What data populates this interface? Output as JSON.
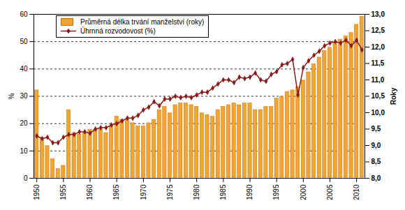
{
  "chart_data": {
    "type": "bar",
    "x": [
      1950,
      1951,
      1952,
      1953,
      1954,
      1955,
      1956,
      1957,
      1958,
      1959,
      1960,
      1961,
      1962,
      1963,
      1964,
      1965,
      1966,
      1967,
      1968,
      1969,
      1970,
      1971,
      1972,
      1973,
      1974,
      1975,
      1976,
      1977,
      1978,
      1979,
      1980,
      1981,
      1982,
      1983,
      1984,
      1985,
      1986,
      1987,
      1988,
      1989,
      1990,
      1991,
      1992,
      1993,
      1994,
      1995,
      1996,
      1997,
      1998,
      1999,
      2000,
      2001,
      2002,
      2003,
      2004,
      2005,
      2006,
      2007,
      2008,
      2009,
      2010,
      2011
    ],
    "xticks": [
      1950,
      1955,
      1960,
      1965,
      1970,
      1975,
      1980,
      1985,
      1990,
      1995,
      2000,
      2005,
      2010
    ],
    "ylabel": "%",
    "y2label": "Roky",
    "ylim": [
      0,
      60
    ],
    "yticks": [
      0,
      10,
      20,
      30,
      40,
      50,
      60
    ],
    "y2lim": [
      8.0,
      13.0
    ],
    "y2ticks": [
      {
        "value": 8.0,
        "label": "8,0"
      },
      {
        "value": 8.5,
        "label": "8,5"
      },
      {
        "value": 9.0,
        "label": "9,0"
      },
      {
        "value": 9.5,
        "label": "9,5"
      },
      {
        "value": 10.0,
        "label": "10,0"
      },
      {
        "value": 10.5,
        "label": "10,5"
      },
      {
        "value": 11.0,
        "label": "11,0"
      },
      {
        "value": 11.5,
        "label": "11,5"
      },
      {
        "value": 12.0,
        "label": "12,0"
      },
      {
        "value": 12.5,
        "label": "12,5"
      },
      {
        "value": 13.0,
        "label": "13,0"
      }
    ],
    "grid": true,
    "legend": "top-left",
    "series": [
      {
        "name": "Průměrná délka trvání manželství (roky)",
        "type": "bar",
        "axis": "y2",
        "color": "#f5a431",
        "values": [
          10.7,
          9.2,
          9.0,
          8.6,
          8.3,
          8.4,
          10.1,
          9.4,
          9.35,
          9.4,
          9.5,
          9.5,
          9.5,
          9.4,
          9.6,
          9.9,
          9.8,
          9.8,
          9.7,
          9.6,
          9.6,
          9.7,
          9.8,
          10.1,
          10.2,
          10.0,
          10.25,
          10.3,
          10.3,
          10.25,
          10.2,
          10.0,
          9.95,
          9.9,
          10.1,
          10.2,
          10.25,
          10.3,
          10.25,
          10.3,
          10.3,
          10.1,
          10.1,
          10.2,
          10.2,
          10.45,
          10.5,
          10.65,
          10.7,
          10.8,
          11.0,
          11.25,
          11.5,
          11.7,
          11.9,
          12.0,
          12.15,
          12.25,
          12.35,
          12.45,
          12.7,
          12.95
        ]
      },
      {
        "name": "Úhrnná rozvodovost (%)",
        "type": "line",
        "marker": "diamond",
        "color": "#8b1a1a",
        "values": [
          15.5,
          14.5,
          15,
          13,
          13,
          15,
          16,
          16,
          17,
          17,
          16.5,
          18,
          18.5,
          18.5,
          19.5,
          20,
          21,
          22,
          22,
          23,
          25,
          26,
          28,
          26.5,
          29,
          29,
          30,
          29.5,
          30,
          29.5,
          30.5,
          31.5,
          31.5,
          33,
          34.5,
          36,
          36,
          35,
          37,
          36.5,
          37,
          38.5,
          36,
          35.5,
          38,
          39,
          41.5,
          42,
          43.5,
          30.5,
          40.5,
          43,
          45,
          46.5,
          48.5,
          49.5,
          50,
          49.5,
          50.5,
          48.5,
          50.5,
          47
        ]
      }
    ]
  }
}
